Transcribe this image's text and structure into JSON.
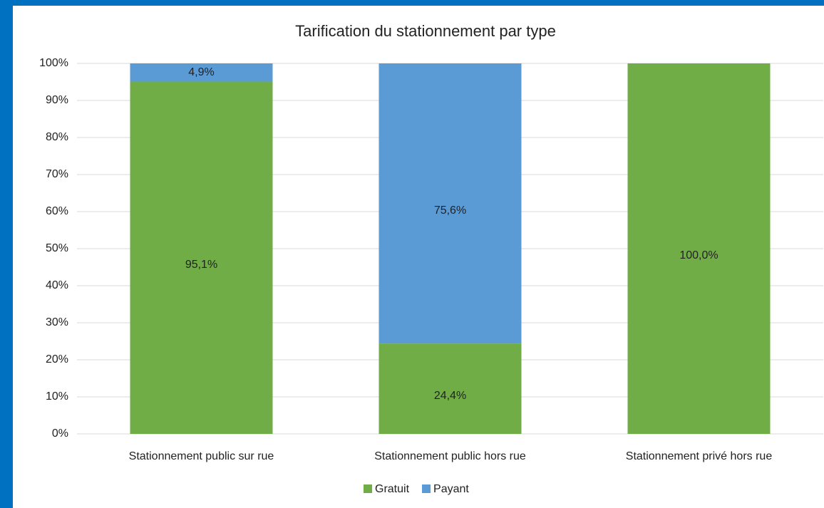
{
  "chart_data": {
    "type": "stacked_bar",
    "title": "Tarification du stationnement par type",
    "categories": [
      "Stationnement public sur rue",
      "Stationnement public hors rue",
      "Stationnement privé hors rue"
    ],
    "series": [
      {
        "name": "Gratuit",
        "color": "#70ad47",
        "values": [
          95.1,
          24.4,
          100
        ],
        "value_labels": [
          "95,1%",
          "24,4%",
          "100,0%"
        ]
      },
      {
        "name": "Payant",
        "color": "#5b9bd5",
        "values": [
          4.9,
          75.6,
          0
        ],
        "value_labels": [
          "4,9%",
          "75,6%",
          null
        ]
      }
    ],
    "ylim": [
      0,
      100
    ],
    "yticks": [
      {
        "value": 0,
        "label": "0%"
      },
      {
        "value": 10,
        "label": "10%"
      },
      {
        "value": 20,
        "label": "20%"
      },
      {
        "value": 30,
        "label": "30%"
      },
      {
        "value": 40,
        "label": "40%"
      },
      {
        "value": 50,
        "label": "50%"
      },
      {
        "value": 60,
        "label": "60%"
      },
      {
        "value": 70,
        "label": "70%"
      },
      {
        "value": 80,
        "label": "80%"
      },
      {
        "value": 90,
        "label": "90%"
      },
      {
        "value": 100,
        "label": "100%"
      }
    ],
    "grid": true,
    "legend": "bottom"
  }
}
